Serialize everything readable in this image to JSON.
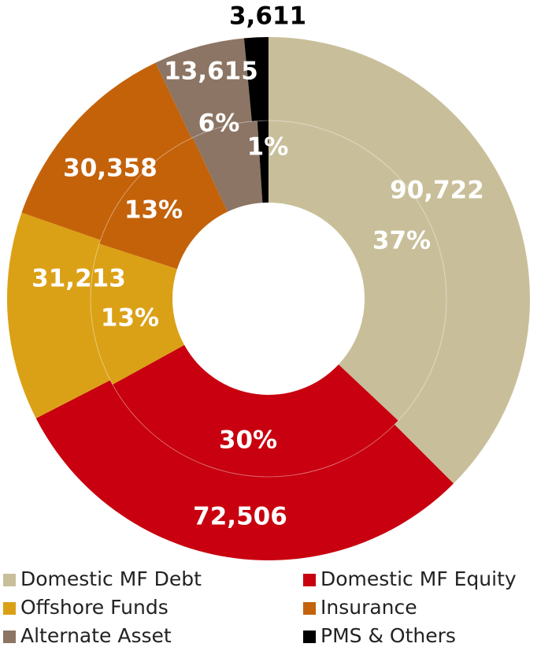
{
  "chart_data": {
    "type": "donut",
    "categories": [
      "Domestic MF Debt",
      "Domestic MF Equity",
      "Offshore Funds",
      "Insurance",
      "Alternate Asset",
      "PMS & Others"
    ],
    "values": [
      90722,
      72506,
      31213,
      30358,
      13615,
      3611
    ],
    "value_labels": [
      "90,722",
      "72,506",
      "31,213",
      "30,358",
      "13,615",
      "3,611"
    ],
    "percentages": [
      37,
      30,
      13,
      13,
      6,
      1
    ],
    "percentage_labels": [
      "37%",
      "30%",
      "13%",
      "13%",
      "6%",
      "1%"
    ],
    "colors": [
      "#c8bf9a",
      "#c8000f",
      "#dba116",
      "#c4620a",
      "#8c7564",
      "#000000"
    ],
    "legend": "bottom"
  }
}
